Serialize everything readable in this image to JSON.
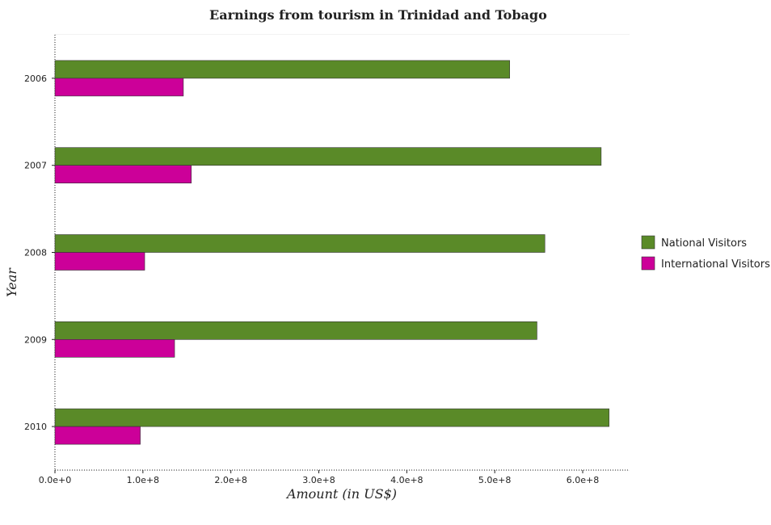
{
  "chart_data": {
    "type": "bar",
    "orientation": "horizontal",
    "title": "Earnings from tourism in Trinidad and Tobago",
    "xlabel": "Amount (in US$)",
    "ylabel": "Year",
    "categories": [
      "2006",
      "2007",
      "2008",
      "2009",
      "2010"
    ],
    "series": [
      {
        "name": "National Visitors",
        "color": "#5a8a28",
        "values": [
          517000000,
          621000000,
          557000000,
          548000000,
          630000000
        ]
      },
      {
        "name": "International Visitors",
        "color": "#cc0099",
        "values": [
          146000000,
          155000000,
          102000000,
          136000000,
          97000000
        ]
      }
    ],
    "xlim": [
      0,
      650000000
    ],
    "xticks": [
      0,
      100000000,
      200000000,
      300000000,
      400000000,
      500000000,
      600000000
    ],
    "xtick_labels": [
      "0.0e+0",
      "1.0e+8",
      "2.0e+8",
      "3.0e+8",
      "4.0e+8",
      "5.0e+8",
      "6.0e+8"
    ],
    "grid": true,
    "legend_position": "right"
  }
}
